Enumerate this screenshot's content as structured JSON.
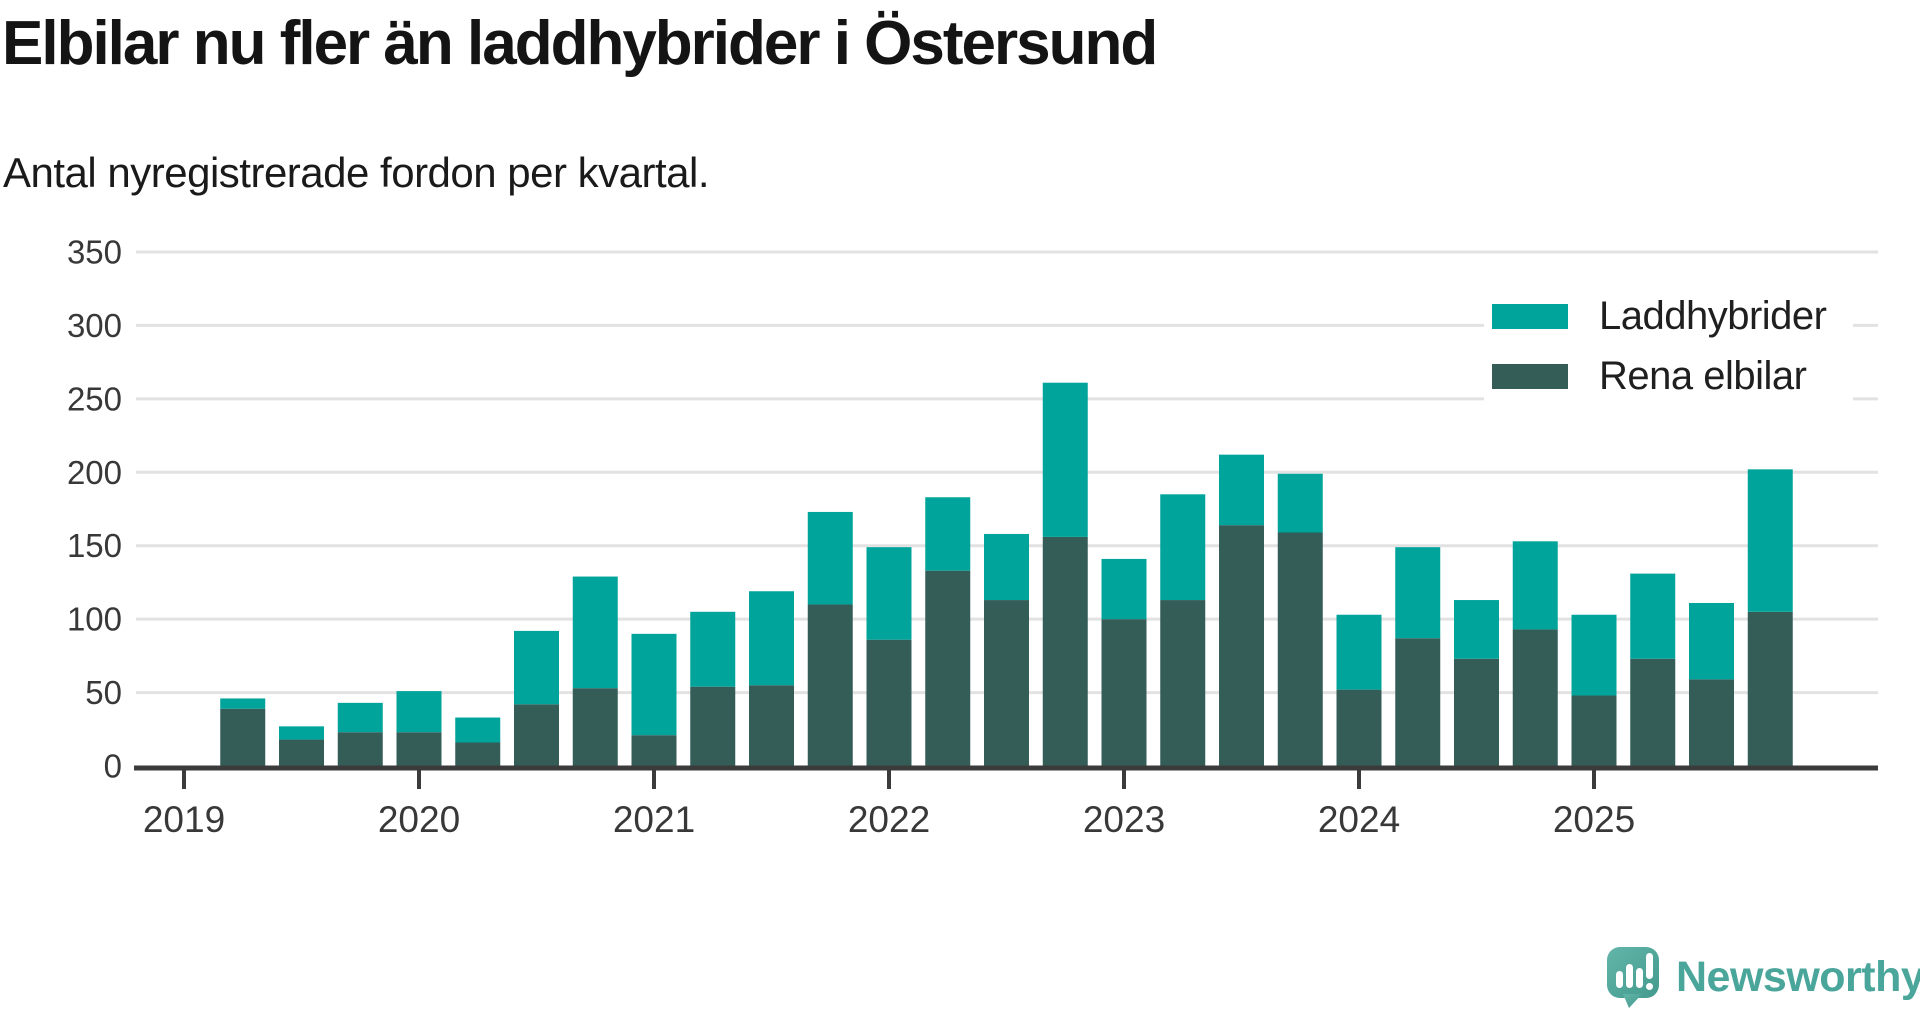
{
  "header": {
    "title": "Elbilar nu fler än laddhybrider i Östersund",
    "subtitle": "Antal nyregistrerade fordon per kvartal."
  },
  "footer": {
    "brand": "Newsworthy",
    "brand_color": "#4aa59b"
  },
  "chart_data": {
    "type": "bar",
    "stacked": true,
    "title": "Elbilar nu fler än laddhybrider i Östersund",
    "subtitle": "Antal nyregistrerade fordon per kvartal.",
    "categories": [
      "2019 Q2",
      "2019 Q3",
      "2019 Q4",
      "2020 Q1",
      "2020 Q2",
      "2020 Q3",
      "2020 Q4",
      "2021 Q1",
      "2021 Q2",
      "2021 Q3",
      "2021 Q4",
      "2022 Q1",
      "2022 Q2",
      "2022 Q3",
      "2022 Q4",
      "2023 Q1",
      "2023 Q2",
      "2023 Q3",
      "2023 Q4",
      "2024 Q1",
      "2024 Q2",
      "2024 Q3",
      "2024 Q4",
      "2025 Q1",
      "2025 Q2",
      "2025 Q3",
      "2025 Q4"
    ],
    "series": [
      {
        "name": "Laddhybrider",
        "color": "#00a49b",
        "stack_position": "top",
        "values": [
          7,
          9,
          20,
          28,
          17,
          50,
          76,
          69,
          51,
          64,
          63,
          63,
          50,
          45,
          105,
          41,
          72,
          48,
          40,
          51,
          62,
          40,
          60,
          55,
          58,
          52,
          97
        ]
      },
      {
        "name": "Rena elbilar",
        "color": "#355d58",
        "stack_position": "bottom",
        "values": [
          39,
          18,
          23,
          23,
          16,
          42,
          53,
          21,
          54,
          55,
          110,
          86,
          133,
          113,
          156,
          100,
          113,
          164,
          159,
          52,
          87,
          73,
          93,
          48,
          73,
          59,
          105
        ]
      }
    ],
    "totals": [
      46,
      27,
      43,
      51,
      33,
      92,
      129,
      90,
      105,
      119,
      173,
      149,
      183,
      158,
      261,
      141,
      185,
      212,
      199,
      103,
      149,
      113,
      153,
      103,
      131,
      111,
      202
    ],
    "x_tick_labels": [
      "2019",
      "2020",
      "2021",
      "2022",
      "2023",
      "2024",
      "2025"
    ],
    "y_ticks": [
      0,
      50,
      100,
      150,
      200,
      250,
      300,
      350
    ],
    "ylim": [
      0,
      350
    ],
    "grid": true,
    "legend_position": "top-right",
    "axis_color": "#3b3b3b",
    "grid_color": "#e2e2e2",
    "label_color": "#383838"
  }
}
